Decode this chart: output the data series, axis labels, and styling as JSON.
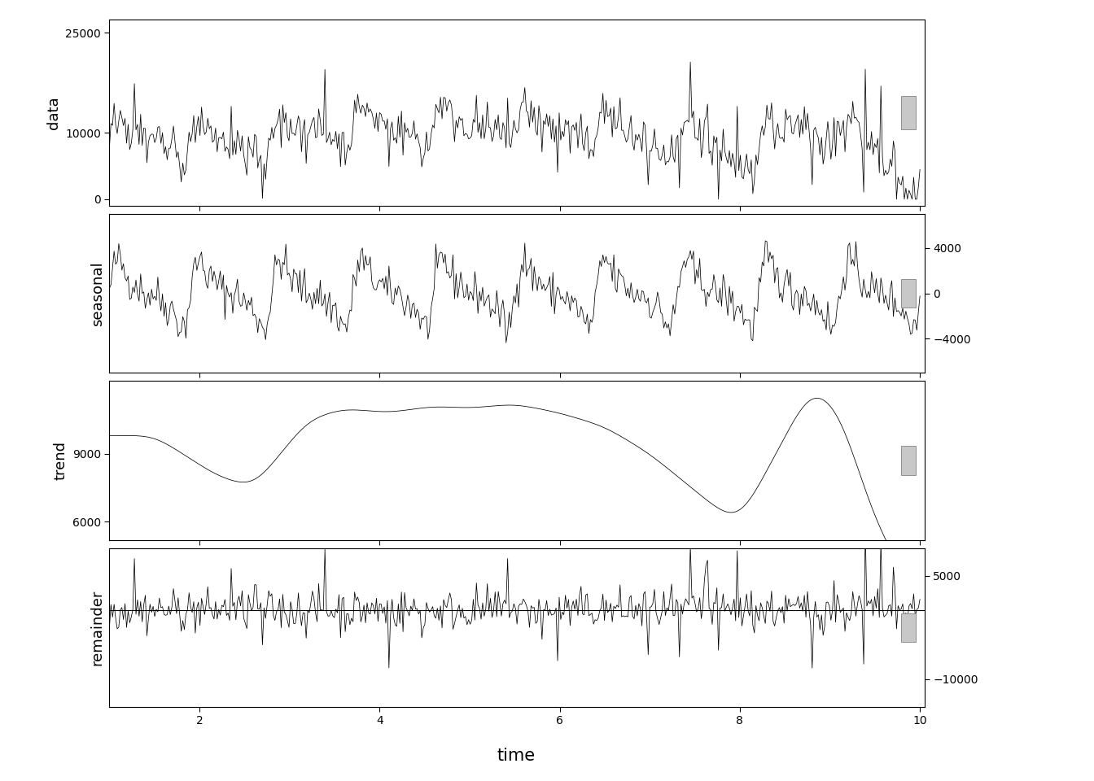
{
  "title": "",
  "xlabel": "time",
  "panel_labels": [
    "data",
    "seasonal",
    "trend",
    "remainder"
  ],
  "x_ticks": [
    2,
    4,
    6,
    8,
    10
  ],
  "x_lim": [
    1.0,
    10.05
  ],
  "data_ylim": [
    -1000,
    27000
  ],
  "data_yticks": [
    0,
    10000,
    25000
  ],
  "seasonal_ylim": [
    -7000,
    7000
  ],
  "seasonal_yticks": [
    -4000,
    0,
    4000
  ],
  "trend_ylim": [
    5200,
    12200
  ],
  "trend_yticks": [
    6000,
    9000
  ],
  "remainder_ylim": [
    -14000,
    9000
  ],
  "remainder_yticks": [
    -10000,
    5000
  ],
  "n_points": 520,
  "frequency": 52,
  "background_color": "#ffffff",
  "line_color": "#000000",
  "bar_color": "#c8c8c8",
  "panel_bg": "#ffffff",
  "spine_color": "#000000",
  "label_fontsize": 13,
  "tick_fontsize": 10,
  "xlabel_fontsize": 15
}
